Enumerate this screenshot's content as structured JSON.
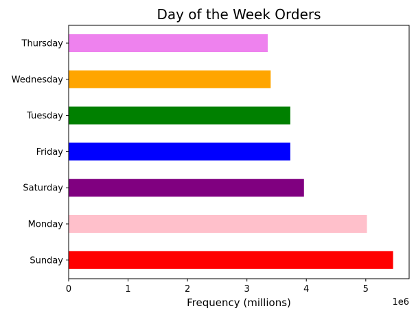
{
  "chart_data": {
    "type": "bar",
    "orientation": "horizontal",
    "title": "Day of the Week Orders",
    "xlabel": "Frequency (millions)",
    "ylabel": "",
    "x_offset_label": "1e6",
    "categories": [
      "Thursday",
      "Wednesday",
      "Tuesday",
      "Friday",
      "Saturday",
      "Monday",
      "Sunday"
    ],
    "values": [
      3350000,
      3400000,
      3730000,
      3730000,
      3960000,
      5020000,
      5460000
    ],
    "colors": [
      "#ee82ee",
      "#ffa500",
      "#008000",
      "#0000ff",
      "#800080",
      "#ffc0cb",
      "#ff0000"
    ],
    "xlim": [
      0,
      5730000
    ],
    "xticks": [
      0,
      1000000,
      2000000,
      3000000,
      4000000,
      5000000
    ],
    "xtick_labels": [
      "0",
      "1",
      "2",
      "3",
      "4",
      "5"
    ],
    "grid": false,
    "legend": "none"
  }
}
